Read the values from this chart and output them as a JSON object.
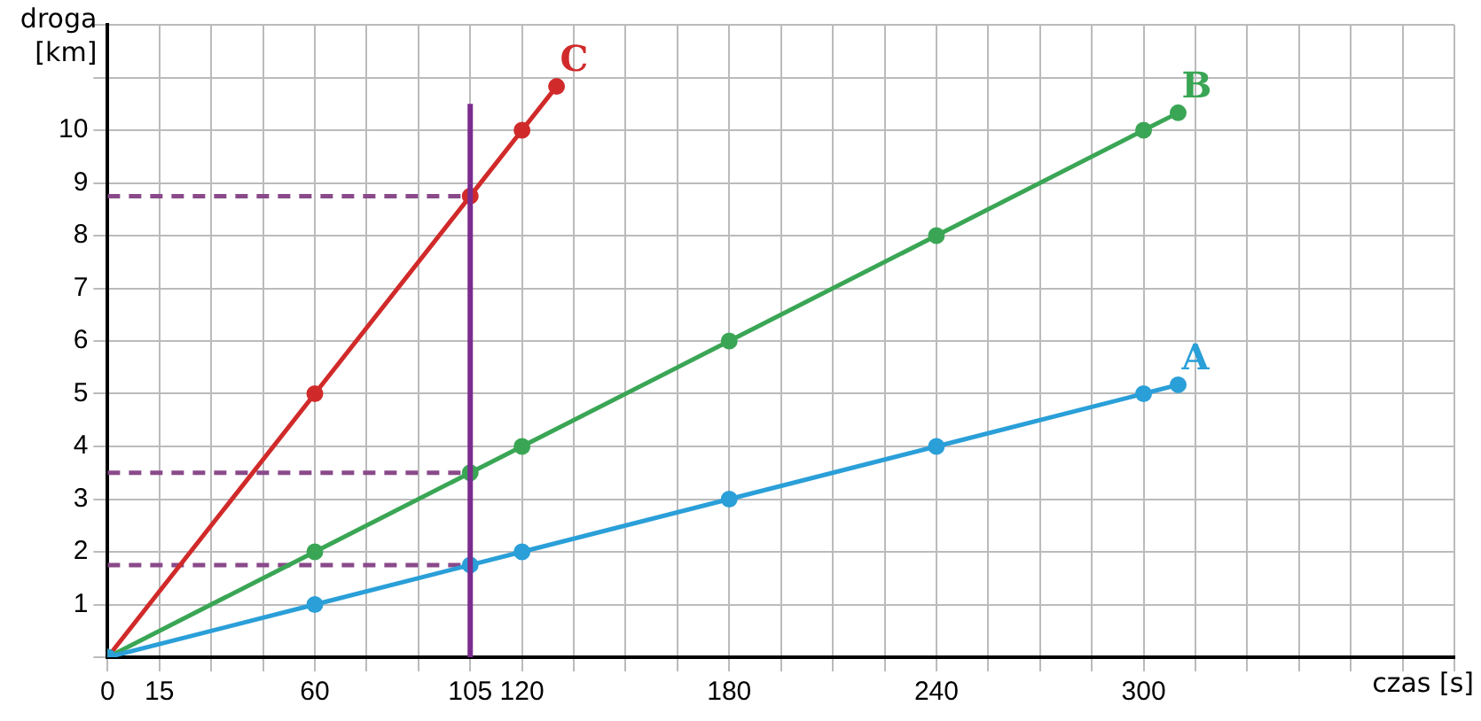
{
  "chart_data": {
    "type": "line",
    "xlabel": "czas [s]",
    "ylabel": "droga [km]",
    "xlim": [
      0,
      390
    ],
    "ylim": [
      0,
      12
    ],
    "xticks": [
      0,
      {
        "value": 15,
        "label": "15"
      },
      {
        "value": 30,
        "label": null
      },
      {
        "value": 45,
        "label": null
      },
      60,
      {
        "value": 75,
        "label": null
      },
      {
        "value": 90,
        "label": null
      },
      105,
      120,
      {
        "value": 135,
        "label": null
      },
      {
        "value": 150,
        "label": null
      },
      {
        "value": 165,
        "label": null
      },
      180,
      {
        "value": 195,
        "label": null
      },
      {
        "value": 210,
        "label": null
      },
      {
        "value": 225,
        "label": null
      },
      240,
      {
        "value": 255,
        "label": null
      },
      {
        "value": 270,
        "label": null
      },
      {
        "value": 285,
        "label": null
      },
      300,
      {
        "value": 315,
        "label": null
      },
      {
        "value": 330,
        "label": null
      },
      {
        "value": 345,
        "label": null
      },
      {
        "value": 360,
        "label": null
      },
      {
        "value": 375,
        "label": null
      },
      {
        "value": 390,
        "label": null
      }
    ],
    "yticks": [
      {
        "value": 0,
        "label": null
      },
      1,
      2,
      3,
      4,
      5,
      6,
      7,
      8,
      9,
      10,
      {
        "value": 11,
        "label": null
      },
      {
        "value": 12,
        "label": null
      }
    ],
    "grid": true,
    "legend": false,
    "marker": "circle",
    "series": [
      {
        "name": "A",
        "color": "#2a9fd8",
        "x": [
          0,
          60,
          105,
          120,
          180,
          240,
          300,
          310
        ],
        "values": [
          0,
          1,
          1.75,
          2,
          3,
          4,
          5,
          5.17
        ]
      },
      {
        "name": "B",
        "color": "#3aa655",
        "x": [
          0,
          60,
          105,
          120,
          180,
          240,
          300,
          310
        ],
        "values": [
          0,
          2,
          3.5,
          4,
          6,
          8,
          10,
          10.33
        ]
      },
      {
        "name": "C",
        "color": "#d12a2a",
        "x": [
          0,
          60,
          105,
          120,
          130
        ],
        "values": [
          0,
          5,
          8.75,
          10,
          10.83
        ]
      },
      {
        "color": "#8a4a8a",
        "x": [
          0,
          105
        ],
        "values": [
          8.75,
          8.75
        ],
        "line_style": "dashed",
        "marker": "none"
      },
      {
        "color": "#8a4a8a",
        "x": [
          0,
          105
        ],
        "values": [
          3.5,
          3.5
        ],
        "line_style": "dashed",
        "marker": "none"
      },
      {
        "color": "#8a4a8a",
        "x": [
          0,
          105
        ],
        "values": [
          1.75,
          1.75
        ],
        "line_style": "dashed",
        "marker": "none"
      }
    ],
    "ref_lines": [
      {
        "axis": "x",
        "value": 105,
        "color": "#7b2d8e"
      }
    ]
  }
}
